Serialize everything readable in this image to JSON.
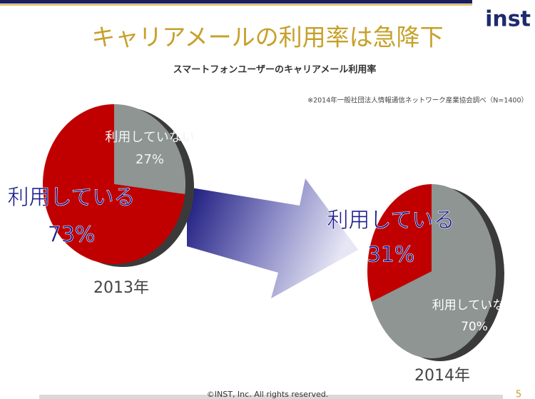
{
  "title": "キャリアメールの利用率は急降下",
  "subtitle": "スマートフォンユーザーのキャリアメール利用率",
  "source_note": "※2014年一般社団法人情報通信ネットワーク産業協会調べ（N=1400）",
  "logo": "inst",
  "footer": "©INST, Inc. All rights reserved.",
  "page_number": 5,
  "chart_data": [
    {
      "type": "pie",
      "caption": "2013年",
      "categories": [
        "利用している",
        "利用していない"
      ],
      "values": [
        73,
        27
      ],
      "value_labels": [
        "73%",
        "27%"
      ],
      "colors": [
        "#c00000",
        "#8e9592"
      ]
    },
    {
      "type": "pie",
      "caption": "2014年",
      "categories": [
        "利用している",
        "利用していない"
      ],
      "values": [
        31,
        70
      ],
      "value_labels": [
        "31%",
        "70%"
      ],
      "colors": [
        "#c00000",
        "#8e9592"
      ]
    }
  ]
}
